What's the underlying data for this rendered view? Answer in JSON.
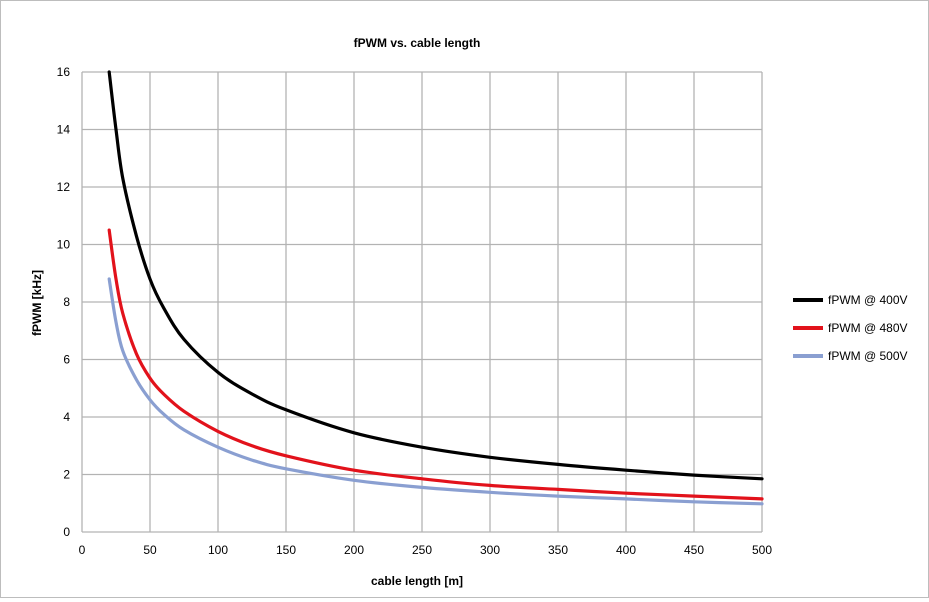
{
  "chart_data": {
    "type": "line",
    "title": "fPWM vs. cable length",
    "xlabel": "cable length [m]",
    "ylabel": "fPWM [kHz]",
    "xlim": [
      0,
      500
    ],
    "ylim": [
      0,
      16
    ],
    "xticks": [
      0,
      50,
      100,
      150,
      200,
      250,
      300,
      350,
      400,
      450,
      500
    ],
    "yticks": [
      0,
      2,
      4,
      6,
      8,
      10,
      12,
      14,
      16
    ],
    "grid": true,
    "legend_position": "right",
    "series": [
      {
        "name": "fPWM @ 400V",
        "color": "#000000",
        "x": [
          20,
          25,
          30,
          40,
          50,
          60,
          75,
          100,
          125,
          150,
          200,
          250,
          300,
          350,
          400,
          450,
          500
        ],
        "y": [
          16.0,
          14.0,
          12.3,
          10.3,
          8.8,
          7.8,
          6.7,
          5.55,
          4.8,
          4.25,
          3.45,
          2.95,
          2.6,
          2.35,
          2.15,
          1.98,
          1.85
        ]
      },
      {
        "name": "fPWM @ 480V",
        "color": "#e2121b",
        "x": [
          20,
          25,
          30,
          40,
          50,
          60,
          75,
          100,
          125,
          150,
          200,
          250,
          300,
          350,
          400,
          450,
          500
        ],
        "y": [
          10.5,
          8.8,
          7.6,
          6.2,
          5.35,
          4.8,
          4.2,
          3.5,
          3.0,
          2.65,
          2.15,
          1.85,
          1.62,
          1.48,
          1.35,
          1.25,
          1.15
        ]
      },
      {
        "name": "fPWM @ 500V",
        "color": "#8a9fd1",
        "x": [
          20,
          25,
          30,
          40,
          50,
          60,
          75,
          100,
          125,
          150,
          200,
          250,
          300,
          350,
          400,
          450,
          500
        ],
        "y": [
          8.8,
          7.3,
          6.3,
          5.3,
          4.6,
          4.1,
          3.55,
          2.95,
          2.5,
          2.2,
          1.8,
          1.55,
          1.38,
          1.25,
          1.15,
          1.05,
          0.98
        ]
      }
    ]
  }
}
